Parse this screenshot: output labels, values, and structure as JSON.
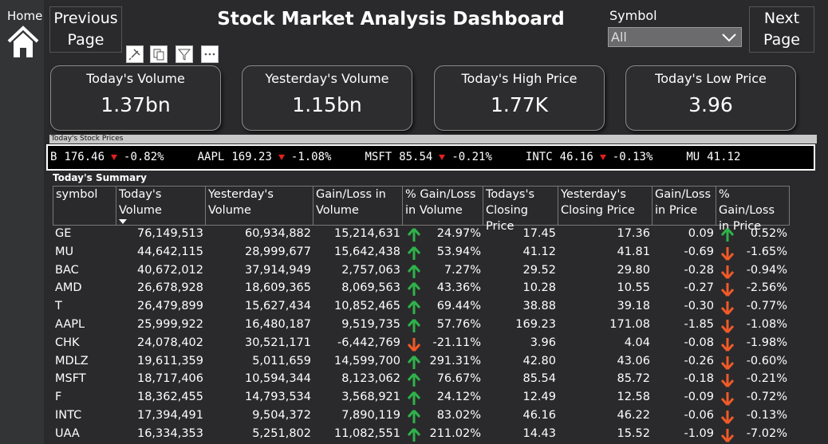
{
  "nav": {
    "home": "Home",
    "previous": "Previous Page",
    "next": "Next Page"
  },
  "header": {
    "title": "Stock Market Analysis Dashboard"
  },
  "slicer": {
    "label": "Symbol",
    "selected": "All"
  },
  "cards": [
    {
      "label": "Today's Volume",
      "value": "1.37bn"
    },
    {
      "label": "Yesterday's Volume",
      "value": "1.15bn"
    },
    {
      "label": "Today's High Price",
      "value": "1.77K"
    },
    {
      "label": "Today's Low Price",
      "value": "3.96"
    }
  ],
  "ticker": {
    "title": "Today's Stock Prices",
    "items": [
      {
        "symbol": "B",
        "price": "176.46",
        "change": "-0.82%"
      },
      {
        "symbol": "AAPL",
        "price": "169.23",
        "change": "-1.08%"
      },
      {
        "symbol": "MSFT",
        "price": "85.54",
        "change": "-0.21%"
      },
      {
        "symbol": "INTC",
        "price": "46.16",
        "change": "-0.13%"
      },
      {
        "symbol": "MU",
        "price": "41.12"
      }
    ]
  },
  "table": {
    "title": "Today's Summary",
    "columns": [
      "symbol",
      "Today's Volume",
      "Yesterday's Volume",
      "Gain/Loss in Volume",
      "% Gain/Loss in Volume",
      "Todays's Closing Price",
      "Yesterday's Closing Price",
      "Gain/Loss in Price",
      "% Gain/Loss in Price"
    ],
    "rows": [
      [
        "GE",
        "76,149,513",
        "60,934,882",
        "15,214,631",
        "24.97%",
        "17.45",
        "17.36",
        "0.09",
        "0.52%"
      ],
      [
        "MU",
        "44,642,115",
        "28,999,677",
        "15,642,438",
        "53.94%",
        "41.12",
        "41.81",
        "-0.69",
        "-1.65%"
      ],
      [
        "BAC",
        "40,672,012",
        "37,914,949",
        "2,757,063",
        "7.27%",
        "29.52",
        "29.80",
        "-0.28",
        "-0.94%"
      ],
      [
        "AMD",
        "26,678,928",
        "18,609,365",
        "8,069,563",
        "43.36%",
        "10.28",
        "10.55",
        "-0.27",
        "-2.56%"
      ],
      [
        "T",
        "26,479,899",
        "15,627,434",
        "10,852,465",
        "69.44%",
        "38.88",
        "39.18",
        "-0.30",
        "-0.77%"
      ],
      [
        "AAPL",
        "25,999,922",
        "16,480,187",
        "9,519,735",
        "57.76%",
        "169.23",
        "171.08",
        "-1.85",
        "-1.08%"
      ],
      [
        "CHK",
        "24,078,402",
        "30,521,171",
        "-6,442,769",
        "-21.11%",
        "3.96",
        "4.04",
        "-0.08",
        "-1.98%"
      ],
      [
        "MDLZ",
        "19,611,359",
        "5,011,659",
        "14,599,700",
        "291.31%",
        "42.80",
        "43.06",
        "-0.26",
        "-0.60%"
      ],
      [
        "MSFT",
        "18,717,406",
        "10,594,344",
        "8,123,062",
        "76.67%",
        "85.54",
        "85.72",
        "-0.18",
        "-0.21%"
      ],
      [
        "F",
        "18,362,455",
        "14,793,534",
        "3,568,921",
        "24.12%",
        "12.49",
        "12.58",
        "-0.09",
        "-0.72%"
      ],
      [
        "INTC",
        "17,394,491",
        "9,504,372",
        "7,890,119",
        "83.02%",
        "46.16",
        "46.22",
        "-0.06",
        "-0.13%"
      ],
      [
        "UAA",
        "16,334,353",
        "5,251,802",
        "11,082,551",
        "211.02%",
        "14.43",
        "15.52",
        "-1.09",
        "-7.02%"
      ]
    ]
  }
}
